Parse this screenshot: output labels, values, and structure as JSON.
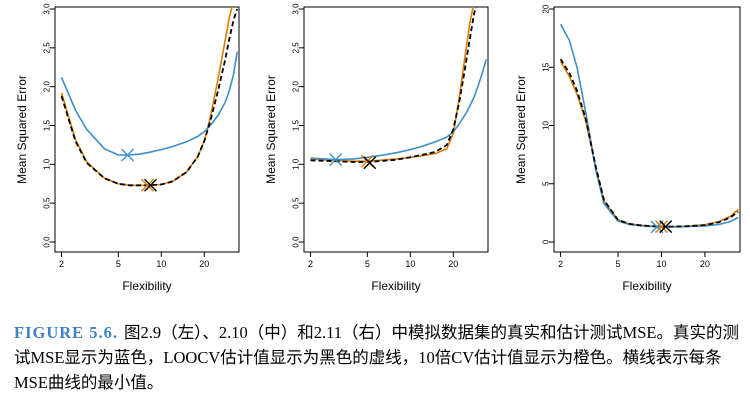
{
  "chart_data": [
    {
      "type": "line",
      "xlabel": "Flexibility",
      "ylabel": "Mean Squared Error",
      "xscale": "log",
      "xticks": [
        2,
        5,
        10,
        20
      ],
      "yticks": [
        "0.0",
        "0.5",
        "1.0",
        "1.5",
        "2.0",
        "2.5",
        "3.0"
      ],
      "ylim": [
        0,
        3.0
      ],
      "xlim": [
        1.8,
        35
      ],
      "colors": {
        "true": "#3d8fc6",
        "loocv": "#000000",
        "cv10": "#e07b00"
      },
      "series": [
        {
          "key": "true",
          "x": [
            2,
            2.5,
            3,
            4,
            5,
            6,
            7,
            8,
            10,
            12,
            15,
            18,
            20,
            22,
            25,
            28,
            30,
            32,
            34
          ],
          "y": [
            2.12,
            1.7,
            1.45,
            1.2,
            1.12,
            1.12,
            1.13,
            1.15,
            1.19,
            1.23,
            1.29,
            1.36,
            1.42,
            1.5,
            1.63,
            1.8,
            1.95,
            2.15,
            2.45
          ]
        },
        {
          "key": "loocv",
          "x": [
            2,
            2.5,
            3,
            4,
            5,
            6,
            7,
            8,
            10,
            12,
            15,
            18,
            20,
            22,
            25,
            28,
            30,
            32,
            34
          ],
          "y": [
            1.88,
            1.3,
            1.02,
            0.82,
            0.75,
            0.73,
            0.73,
            0.73,
            0.74,
            0.78,
            0.9,
            1.1,
            1.3,
            1.55,
            1.95,
            2.35,
            2.62,
            2.85,
            3.0
          ]
        },
        {
          "key": "cv10",
          "x": [
            2,
            2.5,
            3,
            4,
            5,
            6,
            7,
            8,
            10,
            12,
            15,
            18,
            20,
            22,
            25,
            28,
            30,
            31,
            32
          ],
          "y": [
            1.92,
            1.32,
            1.03,
            0.82,
            0.75,
            0.73,
            0.73,
            0.73,
            0.74,
            0.78,
            0.9,
            1.1,
            1.3,
            1.6,
            2.1,
            2.6,
            2.9,
            3.0,
            3.1
          ]
        }
      ],
      "minima": [
        {
          "key": "true",
          "x": 5.8,
          "y": 1.12
        },
        {
          "key": "cv10",
          "x": 8.0,
          "y": 0.73
        },
        {
          "key": "loocv",
          "x": 8.4,
          "y": 0.73
        }
      ]
    },
    {
      "type": "line",
      "xlabel": "Flexibility",
      "ylabel": "Mean Squared Error",
      "xscale": "log",
      "xticks": [
        2,
        5,
        10,
        20
      ],
      "yticks": [
        "0.0",
        "0.5",
        "1.0",
        "1.5",
        "2.0",
        "2.5",
        "3.0"
      ],
      "ylim": [
        0,
        3.0
      ],
      "xlim": [
        1.8,
        35
      ],
      "colors": {
        "true": "#3d8fc6",
        "loocv": "#000000",
        "cv10": "#e07b00"
      },
      "series": [
        {
          "key": "true",
          "x": [
            2,
            3,
            4,
            5,
            6,
            8,
            10,
            12,
            15,
            18,
            20,
            22,
            25,
            28,
            30,
            32,
            34
          ],
          "y": [
            1.08,
            1.06,
            1.07,
            1.09,
            1.11,
            1.15,
            1.19,
            1.23,
            1.29,
            1.35,
            1.42,
            1.52,
            1.68,
            1.87,
            2.02,
            2.18,
            2.35
          ]
        },
        {
          "key": "loocv",
          "x": [
            2,
            3,
            4,
            5,
            6,
            8,
            10,
            12,
            15,
            18,
            20,
            22,
            24,
            26,
            28,
            30
          ],
          "y": [
            1.05,
            1.04,
            1.03,
            1.03,
            1.04,
            1.06,
            1.09,
            1.12,
            1.16,
            1.25,
            1.45,
            1.8,
            2.2,
            2.6,
            2.95,
            3.1
          ]
        },
        {
          "key": "cv10",
          "x": [
            2,
            3,
            4,
            5,
            6,
            8,
            10,
            12,
            15,
            18,
            20,
            22,
            24,
            26,
            28,
            29
          ],
          "y": [
            1.07,
            1.05,
            1.04,
            1.04,
            1.05,
            1.07,
            1.09,
            1.11,
            1.14,
            1.2,
            1.4,
            1.85,
            2.35,
            2.8,
            3.1,
            3.2
          ]
        }
      ],
      "minima": [
        {
          "key": "true",
          "x": 3.0,
          "y": 1.06
        },
        {
          "key": "cv10",
          "x": 5.0,
          "y": 1.04
        },
        {
          "key": "loocv",
          "x": 5.2,
          "y": 1.02
        }
      ]
    },
    {
      "type": "line",
      "xlabel": "Flexibility",
      "ylabel": "Mean Squared Error",
      "xscale": "log",
      "xticks": [
        2,
        5,
        10,
        20
      ],
      "yticks": [
        "0",
        "5",
        "10",
        "15",
        "20"
      ],
      "ylim": [
        0,
        20
      ],
      "xlim": [
        1.8,
        35
      ],
      "colors": {
        "true": "#3d8fc6",
        "loocv": "#000000",
        "cv10": "#e07b00"
      },
      "series": [
        {
          "key": "true",
          "x": [
            2,
            2.3,
            2.6,
            3,
            3.5,
            4,
            5,
            6,
            7,
            8,
            10,
            12,
            15,
            20,
            25,
            30,
            34
          ],
          "y": [
            18.7,
            17.3,
            15.0,
            11.0,
            6.2,
            3.3,
            1.8,
            1.5,
            1.4,
            1.35,
            1.3,
            1.3,
            1.32,
            1.38,
            1.5,
            1.75,
            2.1
          ]
        },
        {
          "key": "loocv",
          "x": [
            2,
            2.3,
            2.6,
            3,
            3.5,
            4,
            5,
            6,
            7,
            8,
            10,
            12,
            15,
            20,
            25,
            30,
            34
          ],
          "y": [
            15.7,
            14.5,
            13.0,
            10.5,
            6.5,
            3.6,
            1.9,
            1.55,
            1.45,
            1.38,
            1.32,
            1.32,
            1.36,
            1.45,
            1.7,
            2.1,
            2.6
          ]
        },
        {
          "key": "cv10",
          "x": [
            2,
            2.3,
            2.6,
            3,
            3.5,
            4,
            5,
            6,
            7,
            8,
            10,
            12,
            15,
            20,
            25,
            30,
            34
          ],
          "y": [
            15.5,
            14.2,
            12.7,
            10.3,
            6.4,
            3.5,
            1.9,
            1.55,
            1.45,
            1.38,
            1.32,
            1.32,
            1.36,
            1.48,
            1.75,
            2.2,
            2.8
          ]
        }
      ],
      "minima": [
        {
          "key": "true",
          "x": 9.3,
          "y": 1.3
        },
        {
          "key": "cv10",
          "x": 10.0,
          "y": 1.32
        },
        {
          "key": "loocv",
          "x": 10.7,
          "y": 1.32
        }
      ]
    }
  ],
  "caption": {
    "label": "FIGURE 5.6.",
    "text": "图2.9（左）、2.10（中）和2.11（右）中模拟数据集的真实和估计测试MSE。真实的测试MSE显示为蓝色，LOOCV估计值显示为黑色的虚线，10倍CV估计值显示为橙色。横线表示每条MSE曲线的最小值。"
  }
}
